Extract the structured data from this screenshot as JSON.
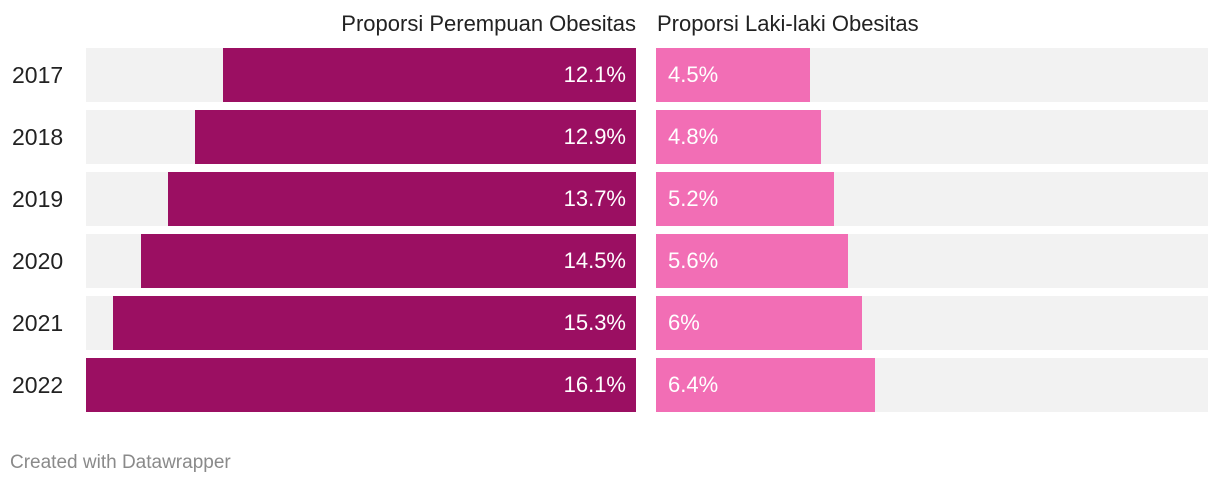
{
  "chart_data": {
    "type": "bar",
    "categories": [
      "2017",
      "2018",
      "2019",
      "2020",
      "2021",
      "2022"
    ],
    "series": [
      {
        "name": "Proporsi Perempuan Obesitas",
        "values": [
          12.1,
          12.9,
          13.7,
          14.5,
          15.3,
          16.1
        ],
        "labels": [
          "12.1%",
          "12.9%",
          "13.7%",
          "14.5%",
          "15.3%",
          "16.1%"
        ],
        "color": "#9b0f62"
      },
      {
        "name": "Proporsi Laki-laki Obesitas",
        "values": [
          4.5,
          4.8,
          5.2,
          5.6,
          6,
          6.4
        ],
        "labels": [
          "4.5%",
          "4.8%",
          "5.2%",
          "5.6%",
          "6%",
          "6.4%"
        ],
        "color": "#f26eb5"
      }
    ],
    "xlim": [
      0,
      16.1
    ],
    "track_color": "#f2f2f2",
    "footer": "Created with Datawrapper"
  }
}
